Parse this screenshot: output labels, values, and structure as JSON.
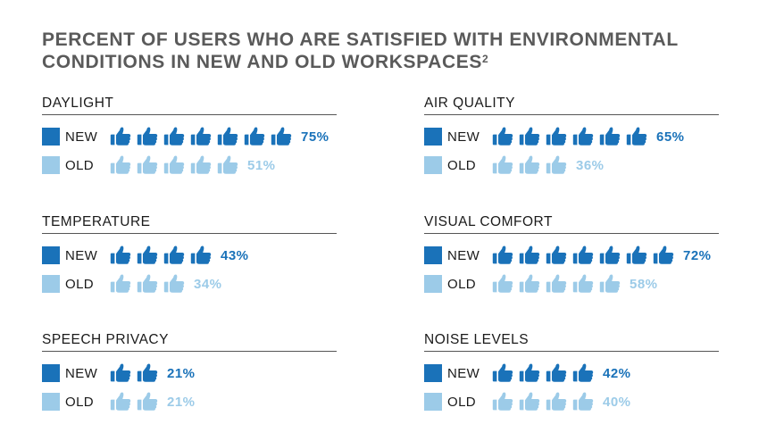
{
  "chart_data": {
    "type": "pictograph",
    "title": "PERCENT OF USERS WHO ARE SATISFIED WITH ENVIRONMENTAL CONDITIONS IN NEW AND OLD WORKSPACES",
    "title_footnote": "2",
    "legend": {
      "new": "NEW",
      "old": "OLD"
    },
    "colors": {
      "new": "#1a72b9",
      "old": "#9ccbe8"
    },
    "categories": [
      {
        "name": "DAYLIGHT",
        "new": {
          "icons": 7,
          "label": "75%"
        },
        "old": {
          "icons": 5,
          "label": "51%"
        }
      },
      {
        "name": "AIR QUALITY",
        "new": {
          "icons": 6,
          "label": "65%"
        },
        "old": {
          "icons": 3,
          "label": "36%"
        }
      },
      {
        "name": "TEMPERATURE",
        "new": {
          "icons": 4,
          "label": "43%"
        },
        "old": {
          "icons": 3,
          "label": "34%"
        }
      },
      {
        "name": "VISUAL COMFORT",
        "new": {
          "icons": 7,
          "label": "72%"
        },
        "old": {
          "icons": 5,
          "label": "58%"
        }
      },
      {
        "name": "SPEECH PRIVACY",
        "new": {
          "icons": 2,
          "label": "21%"
        },
        "old": {
          "icons": 2,
          "label": "21%"
        }
      },
      {
        "name": "NOISE LEVELS",
        "new": {
          "icons": 4,
          "label": "42%"
        },
        "old": {
          "icons": 4,
          "label": "40%"
        }
      }
    ]
  }
}
